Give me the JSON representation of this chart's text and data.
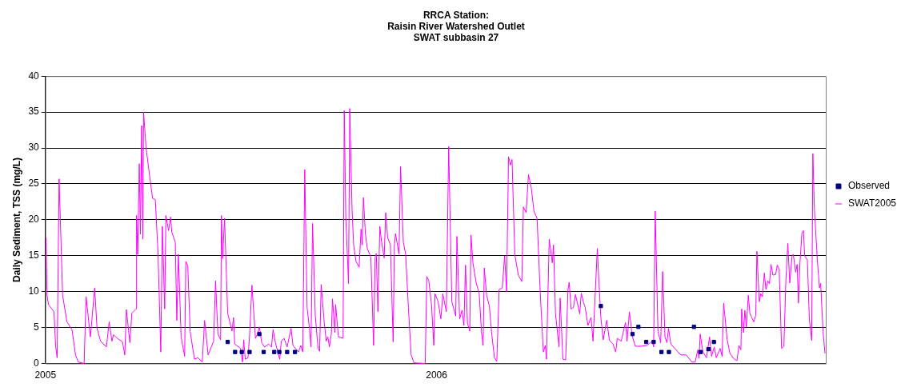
{
  "chart_data": {
    "type": "line",
    "title": "RRCA Station:\nRaisin River Watershed Outlet\nSWAT subbasin 27",
    "ylabel": "Daily Sediment, TSS (mg/L)",
    "xlim": [
      2005,
      2006.995
    ],
    "xticks": [
      2005,
      2006
    ],
    "ylim": [
      0,
      40
    ],
    "yticks": [
      0,
      5,
      10,
      15,
      20,
      25,
      30,
      35,
      40
    ],
    "grid": "y",
    "legend": "right",
    "series": [
      {
        "name": "Observed",
        "type": "scatter",
        "marker": "square",
        "color": "#000080",
        "x": [
          2005.466,
          2005.485,
          2005.502,
          2005.522,
          2005.547,
          2005.558,
          2005.585,
          2005.598,
          2005.618,
          2005.638,
          2006.42,
          2006.501,
          2006.516,
          2006.536,
          2006.555,
          2006.575,
          2006.594,
          2006.658,
          2006.675,
          2006.695,
          2006.709
        ],
        "values": [
          3.0,
          1.6,
          1.6,
          1.6,
          4.1,
          1.6,
          1.6,
          1.6,
          1.6,
          1.6,
          8.0,
          4.1,
          5.1,
          3.0,
          3.0,
          1.6,
          1.6,
          5.1,
          1.6,
          2.0,
          3.0
        ]
      },
      {
        "name": "SWAT2005",
        "marker": "none",
        "color": "#ff00ff",
        "x": [
          2005.002,
          2005.004,
          2005.008,
          2005.022,
          2005.026,
          2005.03,
          2005.035,
          2005.044,
          2005.055,
          2005.068,
          2005.077,
          2005.084,
          2005.099,
          2005.104,
          2005.115,
          2005.126,
          2005.132,
          2005.141,
          2005.156,
          2005.163,
          2005.17,
          2005.174,
          2005.184,
          2005.197,
          2005.203,
          2005.207,
          2005.216,
          2005.221,
          2005.232,
          2005.233,
          2005.236,
          2005.24,
          2005.243,
          2005.246,
          2005.249,
          2005.251,
          2005.257,
          2005.266,
          2005.274,
          2005.281,
          2005.288,
          2005.295,
          2005.299,
          2005.305,
          2005.308,
          2005.315,
          2005.32,
          2005.323,
          2005.332,
          2005.336,
          2005.34,
          2005.347,
          2005.356,
          2005.359,
          2005.364,
          2005.37,
          2005.381,
          2005.39,
          2005.401,
          2005.407,
          2005.416,
          2005.43,
          2005.435,
          2005.441,
          2005.448,
          2005.45,
          2005.453,
          2005.458,
          2005.466,
          2005.477,
          2005.481,
          2005.484,
          2005.499,
          2005.504,
          2005.507,
          2005.511,
          2005.518,
          2005.522,
          2005.528,
          2005.537,
          2005.542,
          2005.547,
          2005.553,
          2005.56,
          2005.571,
          2005.578,
          2005.582,
          2005.588,
          2005.599,
          2005.603,
          2005.61,
          2005.618,
          2005.628,
          2005.633,
          2005.647,
          2005.653,
          2005.658,
          2005.663,
          2005.669,
          2005.675,
          2005.679,
          2005.683,
          2005.69,
          2005.697,
          2005.701,
          2005.705,
          2005.713,
          2005.718,
          2005.722,
          2005.726,
          2005.731,
          2005.734,
          2005.74,
          2005.742,
          2005.749,
          2005.761,
          2005.764,
          2005.768,
          2005.775,
          2005.778,
          2005.784,
          2005.788,
          2005.794,
          2005.802,
          2005.807,
          2005.81,
          2005.813,
          2005.818,
          2005.823,
          2005.832,
          2005.839,
          2005.843,
          2005.846,
          2005.85,
          2005.855,
          2005.859,
          2005.866,
          2005.87,
          2005.875,
          2005.882,
          2005.889,
          2005.892,
          2005.895,
          2005.904,
          2005.908,
          2005.915,
          2005.921,
          2005.928,
          2005.935,
          2005.942,
          2005.971,
          2005.975,
          2005.98,
          2005.987,
          2005.993,
          2005.996,
          2006.004,
          2006.011,
          2006.016,
          2006.025,
          2006.031,
          2006.039,
          2006.049,
          2006.052,
          2006.059,
          2006.065,
          2006.07,
          2006.074,
          2006.079,
          2006.085,
          2006.088,
          2006.093,
          2006.101,
          2006.109,
          2006.115,
          2006.119,
          2006.122,
          2006.128,
          2006.135,
          2006.141,
          2006.148,
          2006.154,
          2006.16,
          2006.168,
          2006.174,
          2006.179,
          2006.184,
          2006.189,
          2006.193,
          2006.2,
          2006.209,
          2006.218,
          2006.222,
          2006.229,
          2006.235,
          2006.242,
          2006.249,
          2006.257,
          2006.265,
          2006.273,
          2006.278,
          2006.281,
          2006.288,
          2006.296,
          2006.299,
          2006.304,
          2006.313,
          2006.316,
          2006.323,
          2006.33,
          2006.336,
          2006.339,
          2006.344,
          2006.35,
          2006.355,
          2006.361,
          2006.366,
          2006.37,
          2006.375,
          2006.38,
          2006.387,
          2006.395,
          2006.4,
          2006.411,
          2006.415,
          2006.42,
          2006.426,
          2006.435,
          2006.442,
          2006.451,
          2006.458,
          2006.462,
          2006.472,
          2006.483,
          2006.487,
          2006.493,
          2006.5,
          2006.508,
          2006.523,
          2006.537,
          2006.552,
          2006.555,
          2006.559,
          2006.566,
          2006.573,
          2006.578,
          2006.584,
          2006.589,
          2006.593,
          2006.599,
          2006.609,
          2006.624,
          2006.638,
          2006.653,
          2006.661,
          2006.668,
          2006.671,
          2006.674,
          2006.681,
          2006.69,
          2006.698,
          2006.703,
          2006.71,
          2006.715,
          2006.725,
          2006.73,
          2006.734,
          2006.743,
          2006.75,
          2006.761,
          2006.768,
          2006.773,
          2006.778,
          2006.78,
          2006.785,
          2006.788,
          2006.792,
          2006.797,
          2006.801,
          2006.804,
          2006.811,
          2006.816,
          2006.819,
          2006.825,
          2006.829,
          2006.833,
          2006.838,
          2006.842,
          2006.847,
          2006.851,
          2006.855,
          2006.86,
          2006.867,
          2006.871,
          2006.876,
          2006.882,
          2006.888,
          2006.893,
          2006.898,
          2006.903,
          2006.909,
          2006.912,
          2006.918,
          2006.922,
          2006.925,
          2006.929,
          2006.934,
          2006.938,
          2006.941,
          2006.948,
          2006.953,
          2006.959,
          2006.962,
          2006.966,
          2006.974,
          2006.979,
          2006.982,
          2006.988,
          2006.993
        ],
        "values": [
          17.5,
          9.5,
          8.2,
          7.2,
          2.5,
          0.8,
          25.7,
          9.5,
          5.8,
          4.7,
          1.2,
          0.2,
          0,
          9.3,
          3.7,
          10.5,
          4.9,
          3.1,
          2.3,
          5.8,
          3.1,
          4,
          3.5,
          3,
          1.2,
          7.5,
          2.9,
          7,
          7.6,
          20.6,
          15.2,
          27.8,
          18,
          33.1,
          17.3,
          35,
          30.2,
          26.3,
          23,
          22.8,
          15.2,
          1.6,
          19.1,
          7.6,
          20.6,
          18.5,
          20.4,
          18.3,
          16.9,
          6,
          15.2,
          3.7,
          1,
          14.2,
          13.6,
          4.5,
          0.6,
          0.8,
          0.2,
          6,
          1.2,
          3.1,
          11.5,
          4.1,
          3.3,
          20.6,
          14.6,
          20.2,
          7,
          4.5,
          6.4,
          2.7,
          2.1,
          0.2,
          3.3,
          0.6,
          0.8,
          3.9,
          10.9,
          3.5,
          4.1,
          5.1,
          2.9,
          2.3,
          2.7,
          2.3,
          4.7,
          2.9,
          0.6,
          3.1,
          3.5,
          2.3,
          4.9,
          2.5,
          1.6,
          2.5,
          1.6,
          27,
          7.8,
          4.9,
          2.3,
          19.5,
          6.6,
          2.1,
          1.7,
          11,
          5.6,
          3.1,
          3.7,
          2.3,
          4.1,
          9,
          4.3,
          8.2,
          3.7,
          3.5,
          35.2,
          20.2,
          11.1,
          35.5,
          21.4,
          16.5,
          14.2,
          13.4,
          18.7,
          16.5,
          23.1,
          18.1,
          16,
          14.8,
          2.5,
          14.8,
          15.3,
          7.2,
          19.1,
          17.1,
          14.7,
          21,
          17.5,
          16.5,
          3,
          16.3,
          18.1,
          15.2,
          27.4,
          16.9,
          15.2,
          7.8,
          1.2,
          0.1,
          0,
          12.1,
          11.6,
          8.2,
          2.5,
          9.7,
          8.6,
          6.2,
          9.7,
          7.2,
          30.2,
          8.6,
          6.6,
          17.7,
          6.2,
          7.4,
          5.3,
          13.7,
          5.6,
          4.5,
          17.9,
          14,
          11.3,
          9.7,
          4.3,
          2.5,
          13.3,
          9.5,
          8,
          4.1,
          0.8,
          0.3,
          10.3,
          10.5,
          15,
          10,
          28.8,
          27.6,
          28.4,
          15.2,
          12.3,
          11.4,
          21.8,
          21,
          26.3,
          24.5,
          21.2,
          20.2,
          9.9,
          1.6,
          2.5,
          0.6,
          17.3,
          14,
          16.5,
          7,
          2.3,
          9.1,
          0.6,
          0.5,
          10.3,
          11.3,
          7.6,
          7.8,
          9.6,
          8.2,
          6.9,
          9.8,
          8.6,
          7.8,
          5.3,
          6.4,
          3.1,
          16,
          11.4,
          6.4,
          3.3,
          6,
          3.2,
          2.7,
          1.6,
          3.5,
          3.1,
          5.7,
          3.1,
          7.2,
          3.9,
          2.4,
          2.4,
          2.5,
          3.1,
          2.3,
          21.2,
          4.5,
          2.9,
          12.8,
          3.7,
          2.9,
          4.9,
          2.7,
          2.1,
          1.2,
          1.2,
          0.2,
          0.2,
          1.9,
          0.7,
          4.1,
          1.6,
          0.8,
          3.7,
          1,
          2.3,
          0.8,
          2.1,
          1,
          8.4,
          3.3,
          1.4,
          0.6,
          0.4,
          2.5,
          1.9,
          7.6,
          4.3,
          7.4,
          5.1,
          9.5,
          7,
          6.6,
          5.8,
          6.7,
          15.6,
          8.6,
          9.7,
          9.3,
          12.6,
          10.3,
          11.5,
          11.1,
          13.8,
          12.3,
          12.4,
          13.7,
          13.1,
          2.1,
          2.4,
          11.5,
          16.7,
          11.2,
          15,
          15.2,
          12.7,
          13.8,
          8.4,
          14,
          18.1,
          18.5,
          15,
          14.4,
          6.2,
          3.2,
          29.2,
          21.4,
          14,
          10.5,
          11.2,
          4.5,
          1.4
        ]
      }
    ]
  }
}
